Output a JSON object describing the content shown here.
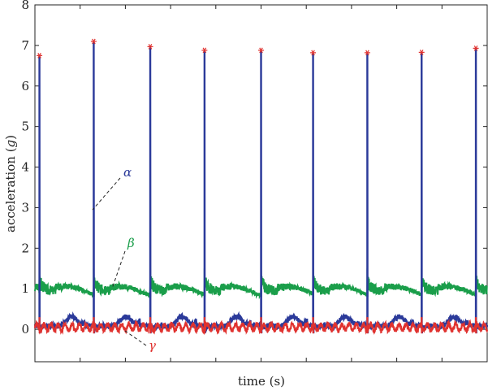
{
  "chart_data": {
    "type": "line",
    "xlabel": "time (s)",
    "ylabel_prefix": "acceleration (",
    "ylabel_symbol": "g",
    "ylabel_suffix": ")",
    "ylim": [
      -0.8,
      8
    ],
    "yticks": [
      "0",
      "1",
      "2",
      "3",
      "4",
      "5",
      "6",
      "7",
      "8"
    ],
    "ytick_values": [
      0,
      1,
      2,
      3,
      4,
      5,
      6,
      7,
      8
    ],
    "xlim": [
      0,
      10
    ],
    "xtick_labels_shown": false,
    "grid": false,
    "colors": {
      "alpha": "#2b3a9a",
      "beta": "#1a9e4a",
      "gamma": "#e0322f",
      "marker": "#e0322f"
    },
    "peaks": {
      "x": [
        0.1,
        1.3,
        2.55,
        3.75,
        5.0,
        6.15,
        7.35,
        8.55,
        9.75
      ],
      "y": [
        6.75,
        7.1,
        6.97,
        6.88,
        6.88,
        6.82,
        6.82,
        6.83,
        6.93
      ]
    },
    "annotations": [
      {
        "text": "α",
        "series": "alpha"
      },
      {
        "text": "β",
        "series": "beta"
      },
      {
        "text": "γ",
        "series": "gamma"
      }
    ]
  }
}
